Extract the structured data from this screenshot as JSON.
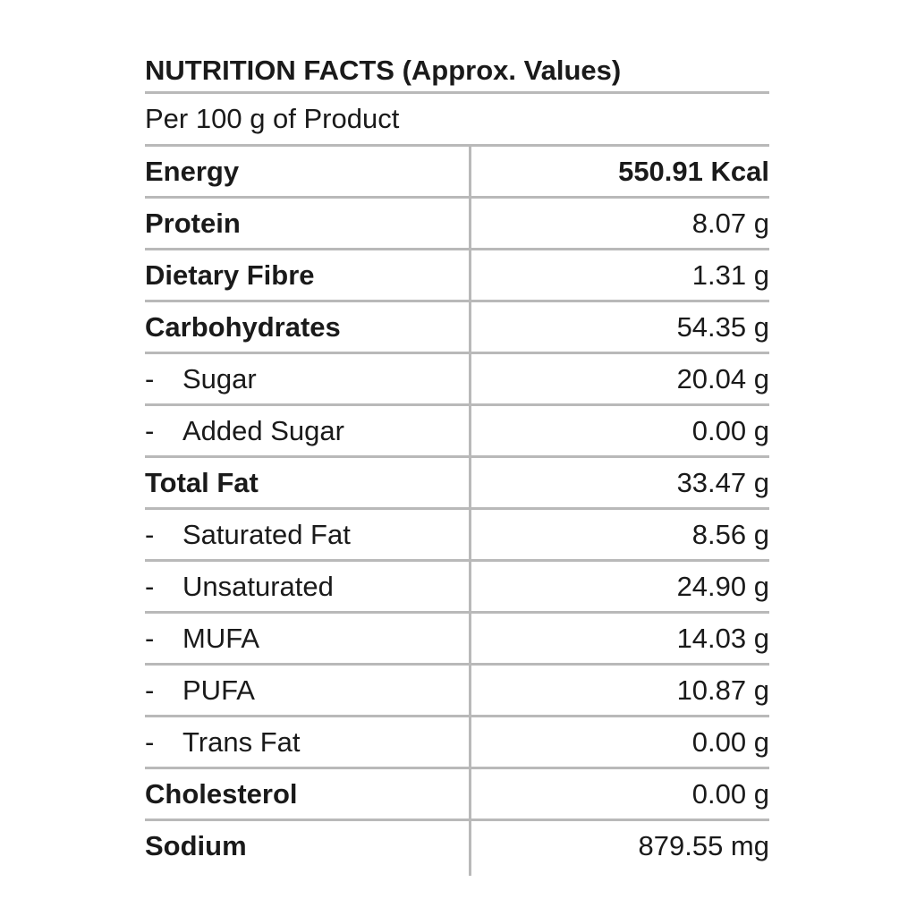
{
  "title": "NUTRITION FACTS (Approx. Values)",
  "subtitle": "Per 100 g of Product",
  "rows": [
    {
      "label": "Energy",
      "value": "550.91 Kcal",
      "bold": true,
      "bold_value": true,
      "sub": false
    },
    {
      "label": "Protein",
      "value": "8.07 g",
      "bold": true,
      "bold_value": false,
      "sub": false
    },
    {
      "label": "Dietary Fibre",
      "value": "1.31 g",
      "bold": true,
      "bold_value": false,
      "sub": false
    },
    {
      "label": "Carbohydrates",
      "value": "54.35 g",
      "bold": true,
      "bold_value": false,
      "sub": false
    },
    {
      "label": "Sugar",
      "value": "20.04 g",
      "bold": false,
      "bold_value": false,
      "sub": true
    },
    {
      "label": "Added Sugar",
      "value": "0.00 g",
      "bold": false,
      "bold_value": false,
      "sub": true
    },
    {
      "label": "Total Fat",
      "value": "33.47 g",
      "bold": true,
      "bold_value": false,
      "sub": false
    },
    {
      "label": "Saturated Fat",
      "value": "8.56 g",
      "bold": false,
      "bold_value": false,
      "sub": true
    },
    {
      "label": "Unsaturated",
      "value": "24.90 g",
      "bold": false,
      "bold_value": false,
      "sub": true
    },
    {
      "label": "MUFA",
      "value": "14.03 g",
      "bold": false,
      "bold_value": false,
      "sub": true
    },
    {
      "label": "PUFA",
      "value": "10.87 g",
      "bold": false,
      "bold_value": false,
      "sub": true
    },
    {
      "label": "Trans Fat",
      "value": "0.00 g",
      "bold": false,
      "bold_value": false,
      "sub": true
    },
    {
      "label": "Cholesterol",
      "value": "0.00 g",
      "bold": true,
      "bold_value": false,
      "sub": false
    },
    {
      "label": "Sodium",
      "value": "879.55 mg",
      "bold": true,
      "bold_value": false,
      "sub": false
    }
  ],
  "sub_prefix": "-"
}
